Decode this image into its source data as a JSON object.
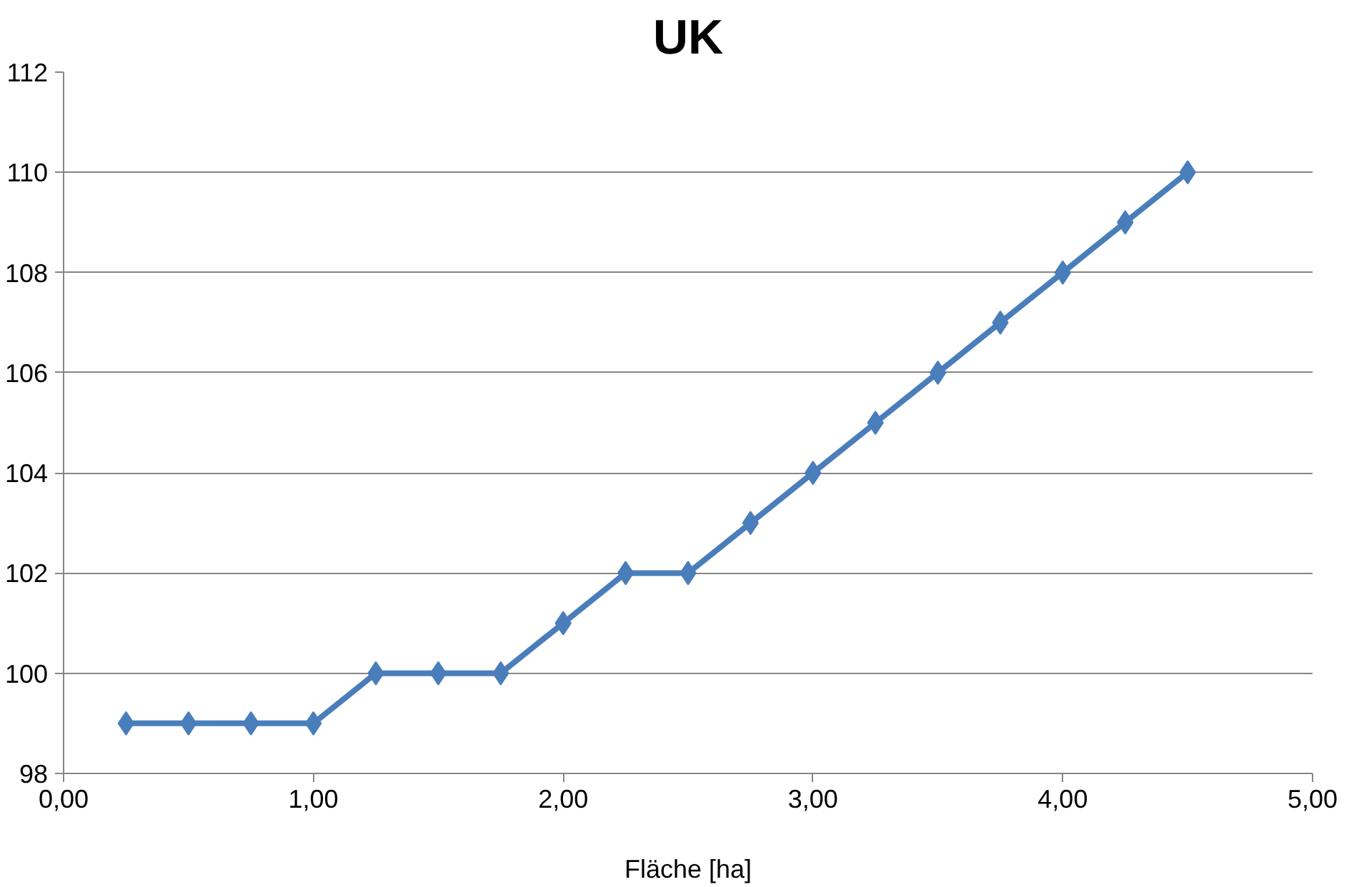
{
  "chart_data": {
    "type": "line",
    "title": "UK",
    "xlabel": "Fläche [ha]",
    "x": [
      0.25,
      0.5,
      0.75,
      1.0,
      1.25,
      1.5,
      1.75,
      2.0,
      2.25,
      2.5,
      2.75,
      3.0,
      3.25,
      3.5,
      3.75,
      4.0,
      4.25,
      4.5
    ],
    "series": [
      {
        "color": "#4a7ebb",
        "values": [
          99,
          99,
          99,
          99,
          100,
          100,
          100,
          101,
          102,
          102,
          103,
          104,
          105,
          106,
          107,
          108,
          109,
          110
        ]
      }
    ],
    "xlim": [
      0,
      5
    ],
    "ylim": [
      98,
      112
    ],
    "xticks": [
      {
        "value": 0,
        "label": "0,00"
      },
      {
        "value": 1,
        "label": "1,00"
      },
      {
        "value": 2,
        "label": "2,00"
      },
      {
        "value": 3,
        "label": "3,00"
      },
      {
        "value": 4,
        "label": "4,00"
      },
      {
        "value": 5,
        "label": "5,00"
      }
    ],
    "yticks": [
      98,
      100,
      102,
      104,
      106,
      108,
      110,
      112
    ],
    "grid": "y",
    "marker": "diamond",
    "line_style": "solid"
  }
}
